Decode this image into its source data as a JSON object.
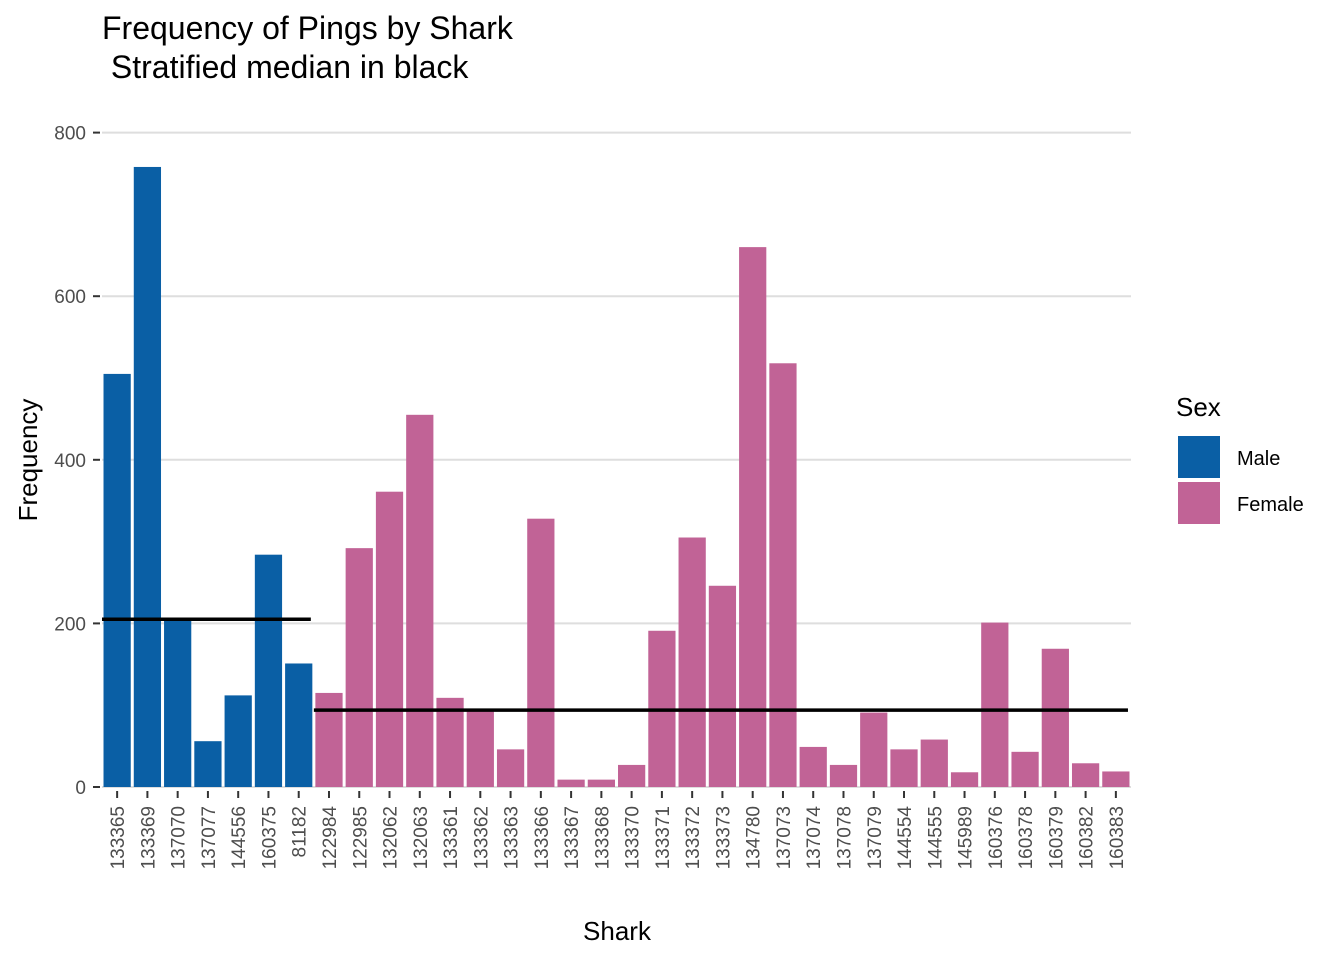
{
  "chart_data": {
    "type": "bar",
    "title": "Frequency of Pings by Shark",
    "subtitle": " Stratified median in black",
    "xlabel": "Shark",
    "ylabel": "Frequency",
    "ylim": [
      -35,
      820
    ],
    "yticks": [
      0,
      200,
      400,
      600,
      800
    ],
    "grid": true,
    "legend_title": "Sex",
    "legend_position": "right",
    "colors": {
      "Male": "#0a5fa5",
      "Female": "#c16396",
      "median": "#000000",
      "grid": "#dedede"
    },
    "categories": [
      "133365",
      "133369",
      "137070",
      "137077",
      "144556",
      "160375",
      "81182",
      "122984",
      "122985",
      "132062",
      "132063",
      "133361",
      "133362",
      "133363",
      "133366",
      "133367",
      "133368",
      "133370",
      "133371",
      "133372",
      "133373",
      "134780",
      "137073",
      "137074",
      "137078",
      "137079",
      "144554",
      "144555",
      "145989",
      "160376",
      "160378",
      "160379",
      "160382",
      "160383"
    ],
    "sex": [
      "Male",
      "Male",
      "Male",
      "Male",
      "Male",
      "Male",
      "Male",
      "Female",
      "Female",
      "Female",
      "Female",
      "Female",
      "Female",
      "Female",
      "Female",
      "Female",
      "Female",
      "Female",
      "Female",
      "Female",
      "Female",
      "Female",
      "Female",
      "Female",
      "Female",
      "Female",
      "Female",
      "Female",
      "Female",
      "Female",
      "Female",
      "Female",
      "Female",
      "Female"
    ],
    "values": [
      505,
      758,
      205,
      56,
      112,
      284,
      151,
      115,
      292,
      361,
      455,
      109,
      94,
      46,
      328,
      9,
      9,
      27,
      191,
      305,
      246,
      660,
      518,
      49,
      27,
      91,
      46,
      58,
      18,
      201,
      43,
      169,
      29,
      19
    ],
    "series": [
      {
        "name": "Male",
        "categories_range": [
          0,
          6
        ]
      },
      {
        "name": "Female",
        "categories_range": [
          7,
          33
        ]
      }
    ],
    "medians": [
      {
        "group": "Male",
        "value": 205,
        "from_category": 0,
        "to_category": 6
      },
      {
        "group": "Female",
        "value": 94,
        "from_category": 7,
        "to_category": 33
      }
    ]
  }
}
